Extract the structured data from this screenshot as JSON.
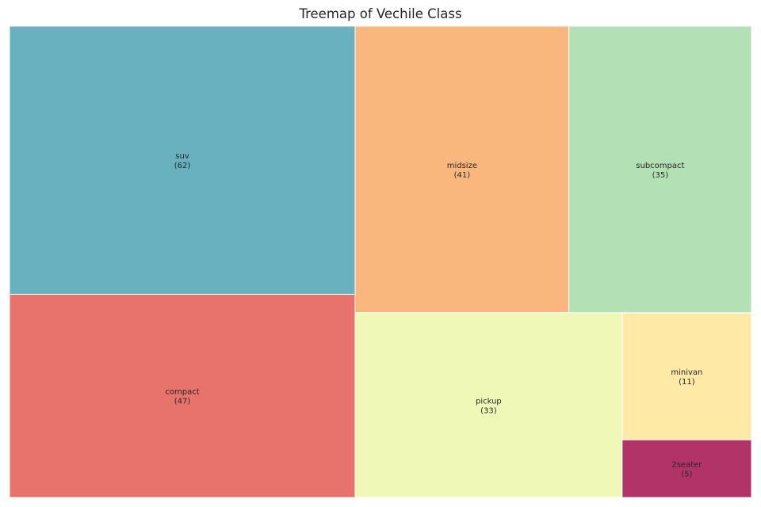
{
  "chart_data": {
    "type": "treemap",
    "title": "Treemap of Vechile Class",
    "items": [
      {
        "label": "2seater",
        "value": 5,
        "color": "#b23367"
      },
      {
        "label": "compact",
        "value": 47,
        "color": "#e8736c"
      },
      {
        "label": "midsize",
        "value": 41,
        "color": "#fab77d"
      },
      {
        "label": "minivan",
        "value": 11,
        "color": "#feeaa6"
      },
      {
        "label": "pickup",
        "value": 33,
        "color": "#f0f8b8"
      },
      {
        "label": "subcompact",
        "value": 35,
        "color": "#b4e0b5"
      },
      {
        "label": "suv",
        "value": 62,
        "color": "#6ab1c0"
      }
    ]
  }
}
